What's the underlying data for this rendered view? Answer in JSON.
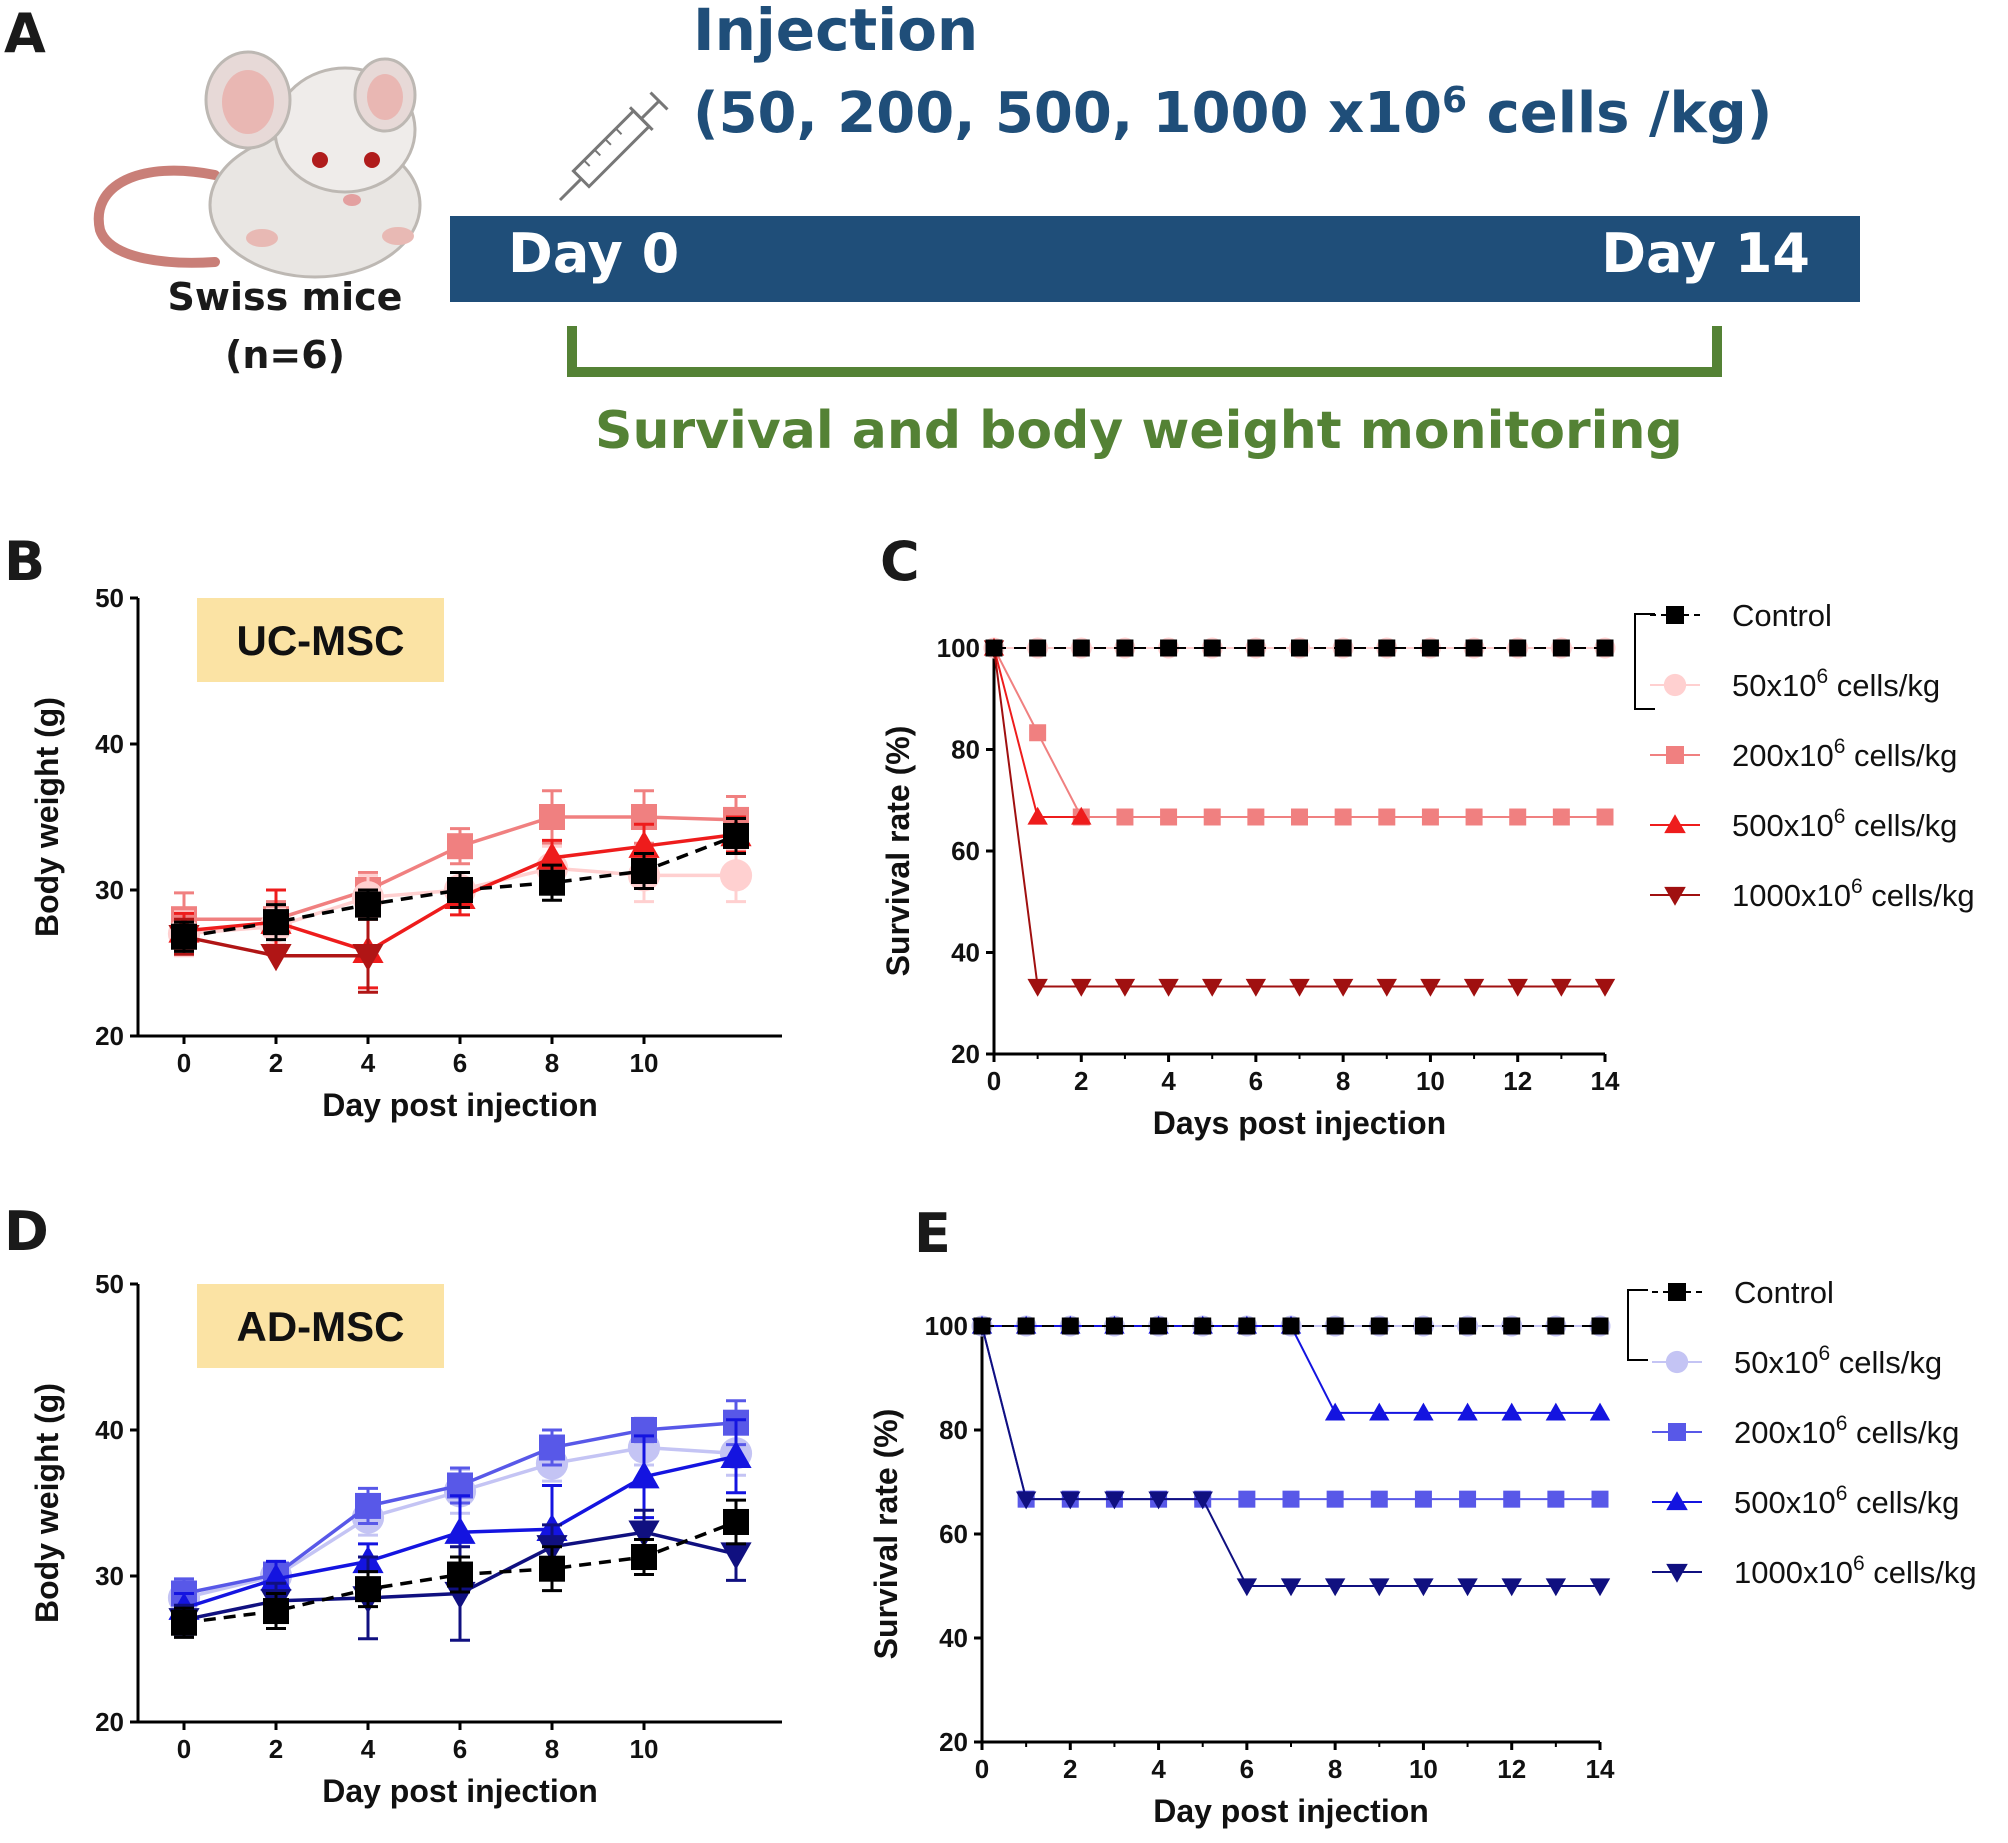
{
  "panel_a": {
    "letter": "A",
    "injection_title": "Injection",
    "doses_prefix": "(50, 200, 500, 1000 x10",
    "doses_exp": "6",
    "doses_suffix": " cells /kg)",
    "day_start": "Day 0",
    "day_end": "Day 14",
    "monitoring": "Survival and body weight monitoring",
    "mouse_label": "Swiss mice",
    "n_label": "(n=6)",
    "colors": {
      "timeline": "#1f4e79",
      "bracket": "#548235"
    }
  },
  "chart_data": [
    {
      "id": "B",
      "letter": "B",
      "type": "line",
      "tag": "UC-MSC",
      "xlabel": "Day post injection",
      "ylabel": "Body weight (g)",
      "xlim": [
        -1,
        13
      ],
      "ylim": [
        20,
        50
      ],
      "xticks": [
        0,
        2,
        4,
        6,
        8,
        10
      ],
      "yticks": [
        20,
        30,
        40,
        50
      ],
      "series": [
        {
          "name": "200x10^6 cells/kg",
          "color": "#f08080",
          "marker": "square",
          "dash": false,
          "x": [
            0,
            2,
            4,
            6,
            8,
            10,
            12
          ],
          "y": [
            28,
            28,
            30,
            33,
            35,
            35,
            34.8
          ],
          "err": [
            1.8,
            1.2,
            1.2,
            1.2,
            1.8,
            1.8,
            1.6
          ]
        },
        {
          "name": "50x10^6 cells/kg",
          "color": "#ffd0d0",
          "marker": "circle",
          "dash": false,
          "x": [
            0,
            2,
            4,
            6,
            8,
            10,
            12
          ],
          "y": [
            27,
            27.5,
            29.5,
            30,
            31.5,
            31,
            31
          ],
          "err": [
            1.5,
            1.2,
            1.5,
            1.2,
            1.5,
            1.8,
            1.8
          ]
        },
        {
          "name": "500x10^6 cells/kg",
          "color": "#ee1c1c",
          "marker": "triangle-up",
          "dash": false,
          "x": [
            0,
            2,
            4,
            6,
            8,
            10,
            12
          ],
          "y": [
            27.2,
            27.8,
            25.8,
            29.5,
            32.2,
            33,
            33.8
          ],
          "err": [
            1.2,
            2.2,
            2.5,
            1.2,
            1.2,
            1.5,
            1.2
          ]
        },
        {
          "name": "1000x10^6 cells/kg",
          "color": "#b01515",
          "marker": "triangle-down",
          "dash": false,
          "x": [
            0,
            2,
            4
          ],
          "y": [
            26.8,
            25.5,
            25.5
          ],
          "err": [
            1.2,
            0,
            2.5
          ]
        },
        {
          "name": "Control",
          "color": "#000000",
          "marker": "square",
          "dash": true,
          "x": [
            0,
            2,
            4,
            6,
            8,
            10,
            12
          ],
          "y": [
            26.8,
            27.8,
            29,
            30,
            30.5,
            31.3,
            33.7
          ],
          "err": [
            1.0,
            1.2,
            1.0,
            1.2,
            1.2,
            1.2,
            1.2
          ]
        }
      ]
    },
    {
      "id": "C",
      "letter": "C",
      "type": "line",
      "xlabel": "Days post injection",
      "ylabel": "Survival rate (%)",
      "xlim": [
        0,
        14
      ],
      "ylim": [
        20,
        100
      ],
      "xticks": [
        0,
        2,
        4,
        6,
        8,
        10,
        12,
        14
      ],
      "yticks": [
        20,
        40,
        60,
        80,
        100
      ],
      "series": [
        {
          "name": "50x10^6 cells/kg",
          "color": "#ffd0d0",
          "marker": "circle",
          "dash": false,
          "x": [
            0,
            1,
            2,
            3,
            4,
            5,
            6,
            7,
            8,
            9,
            10,
            11,
            12,
            13,
            14
          ],
          "y": [
            100,
            100,
            100,
            100,
            100,
            100,
            100,
            100,
            100,
            100,
            100,
            100,
            100,
            100,
            100
          ]
        },
        {
          "name": "200x10^6 cells/kg",
          "color": "#f08080",
          "marker": "square",
          "dash": false,
          "x": [
            0,
            1,
            2,
            3,
            4,
            5,
            6,
            7,
            8,
            9,
            10,
            11,
            12,
            13,
            14
          ],
          "y": [
            100,
            83.3,
            66.7,
            66.7,
            66.7,
            66.7,
            66.7,
            66.7,
            66.7,
            66.7,
            66.7,
            66.7,
            66.7,
            66.7,
            66.7
          ]
        },
        {
          "name": "500x10^6 cells/kg",
          "color": "#ee1c1c",
          "marker": "triangle-up",
          "dash": false,
          "x": [
            0,
            1,
            2
          ],
          "y": [
            100,
            66.7,
            66.7
          ]
        },
        {
          "name": "1000x10^6 cells/kg",
          "color": "#a01010",
          "marker": "triangle-down",
          "dash": false,
          "x": [
            0,
            1,
            2,
            3,
            4,
            5,
            6,
            7,
            8,
            9,
            10,
            11,
            12,
            13,
            14
          ],
          "y": [
            100,
            33.3,
            33.3,
            33.3,
            33.3,
            33.3,
            33.3,
            33.3,
            33.3,
            33.3,
            33.3,
            33.3,
            33.3,
            33.3,
            33.3
          ]
        },
        {
          "name": "Control",
          "color": "#000000",
          "marker": "square",
          "dash": true,
          "x": [
            0,
            1,
            2,
            3,
            4,
            5,
            6,
            7,
            8,
            9,
            10,
            11,
            12,
            13,
            14
          ],
          "y": [
            100,
            100,
            100,
            100,
            100,
            100,
            100,
            100,
            100,
            100,
            100,
            100,
            100,
            100,
            100
          ]
        }
      ],
      "legend": [
        {
          "text": "Control",
          "sup": "",
          "tail": "",
          "color": "#000000",
          "marker": "square",
          "dash": true
        },
        {
          "text": "50x10",
          "sup": "6",
          "tail": " cells/kg",
          "color": "#ffd0d0",
          "marker": "circle",
          "dash": false
        },
        {
          "text": "200x10",
          "sup": "6",
          "tail": " cells/kg",
          "color": "#f08080",
          "marker": "square",
          "dash": false
        },
        {
          "text": "500x10",
          "sup": "6",
          "tail": " cells/kg",
          "color": "#ee1c1c",
          "marker": "triangle-up",
          "dash": false
        },
        {
          "text": "1000x10",
          "sup": "6",
          "tail": " cells/kg",
          "color": "#a01010",
          "marker": "triangle-down",
          "dash": false
        }
      ]
    },
    {
      "id": "D",
      "letter": "D",
      "type": "line",
      "tag": "AD-MSC",
      "xlabel": "Day post injection",
      "ylabel": "Body weight (g)",
      "xlim": [
        -1,
        13
      ],
      "ylim": [
        20,
        50
      ],
      "xticks": [
        0,
        2,
        4,
        6,
        8,
        10
      ],
      "yticks": [
        20,
        30,
        40,
        50
      ],
      "series": [
        {
          "name": "50x10^6 cells/kg",
          "color": "#c4c4f4",
          "marker": "circle",
          "dash": false,
          "x": [
            0,
            2,
            4,
            6,
            8,
            10,
            12
          ],
          "y": [
            28.5,
            30,
            34,
            35.8,
            37.7,
            38.8,
            38.4
          ],
          "err": [
            1.2,
            1.0,
            1.2,
            1.5,
            1.2,
            1.2,
            1.5
          ]
        },
        {
          "name": "200x10^6 cells/kg",
          "color": "#5858e8",
          "marker": "square",
          "dash": false,
          "x": [
            0,
            2,
            4,
            6,
            8,
            10,
            12
          ],
          "y": [
            28.8,
            30.1,
            34.8,
            36.2,
            38.8,
            40,
            40.5
          ],
          "err": [
            1.0,
            0.8,
            1.2,
            1.2,
            1.2,
            0.8,
            1.5
          ]
        },
        {
          "name": "500x10^6 cells/kg",
          "color": "#1414e0",
          "marker": "triangle-up",
          "dash": false,
          "x": [
            0,
            2,
            4,
            6,
            8,
            10,
            12
          ],
          "y": [
            27.8,
            29.8,
            31,
            33,
            33.2,
            36.8,
            38.2
          ],
          "err": [
            1.0,
            1.2,
            1.2,
            2.5,
            3.0,
            2.8,
            2.5
          ]
        },
        {
          "name": "1000x10^6 cells/kg",
          "color": "#101080",
          "marker": "triangle-down",
          "dash": false,
          "x": [
            0,
            2,
            4,
            6,
            8,
            10,
            12
          ],
          "y": [
            27,
            28.3,
            28.5,
            28.8,
            32,
            33,
            31.5
          ],
          "err": [
            1.0,
            1.2,
            2.8,
            3.2,
            1.5,
            1.5,
            1.8
          ]
        },
        {
          "name": "Control",
          "color": "#000000",
          "marker": "square",
          "dash": true,
          "x": [
            0,
            2,
            4,
            6,
            8,
            10,
            12
          ],
          "y": [
            26.8,
            27.6,
            29.1,
            30.1,
            30.5,
            31.3,
            33.7
          ],
          "err": [
            1.0,
            1.2,
            1.2,
            1.2,
            1.5,
            1.2,
            1.5
          ]
        }
      ]
    },
    {
      "id": "E",
      "letter": "E",
      "type": "line",
      "xlabel": "Day post injection",
      "ylabel": "Survival rate (%)",
      "xlim": [
        0,
        14
      ],
      "ylim": [
        20,
        100
      ],
      "xticks": [
        0,
        2,
        4,
        6,
        8,
        10,
        12,
        14
      ],
      "yticks": [
        20,
        40,
        60,
        80,
        100
      ],
      "series": [
        {
          "name": "50x10^6 cells/kg",
          "color": "#c4c4f4",
          "marker": "circle",
          "dash": false,
          "x": [
            0,
            1,
            2,
            3,
            4,
            5,
            6,
            7,
            8,
            9,
            10,
            11,
            12,
            13,
            14
          ],
          "y": [
            100,
            100,
            100,
            100,
            100,
            100,
            100,
            100,
            100,
            100,
            100,
            100,
            100,
            100,
            100
          ]
        },
        {
          "name": "200x10^6 cells/kg",
          "color": "#5858e8",
          "marker": "square",
          "dash": false,
          "x": [
            0,
            1,
            2,
            3,
            4,
            5,
            6,
            7,
            8,
            9,
            10,
            11,
            12,
            13,
            14
          ],
          "y": [
            100,
            66.7,
            66.7,
            66.7,
            66.7,
            66.7,
            66.7,
            66.7,
            66.7,
            66.7,
            66.7,
            66.7,
            66.7,
            66.7,
            66.7
          ]
        },
        {
          "name": "500x10^6 cells/kg",
          "color": "#1414e0",
          "marker": "triangle-up",
          "dash": false,
          "x": [
            0,
            1,
            2,
            3,
            4,
            5,
            6,
            7,
            8,
            9,
            10,
            11,
            12,
            13,
            14
          ],
          "y": [
            100,
            100,
            100,
            100,
            100,
            100,
            100,
            100,
            83.3,
            83.3,
            83.3,
            83.3,
            83.3,
            83.3,
            83.3
          ]
        },
        {
          "name": "1000x10^6 cells/kg",
          "color": "#101080",
          "marker": "triangle-down",
          "dash": false,
          "x": [
            0,
            1,
            2,
            3,
            4,
            5,
            6,
            7,
            8,
            9,
            10,
            11,
            12,
            13,
            14
          ],
          "y": [
            100,
            66.7,
            66.7,
            66.7,
            66.7,
            66.7,
            50,
            50,
            50,
            50,
            50,
            50,
            50,
            50,
            50
          ]
        },
        {
          "name": "Control",
          "color": "#000000",
          "marker": "square",
          "dash": true,
          "x": [
            0,
            1,
            2,
            3,
            4,
            5,
            6,
            7,
            8,
            9,
            10,
            11,
            12,
            13,
            14
          ],
          "y": [
            100,
            100,
            100,
            100,
            100,
            100,
            100,
            100,
            100,
            100,
            100,
            100,
            100,
            100,
            100
          ]
        }
      ],
      "legend": [
        {
          "text": "Control",
          "sup": "",
          "tail": "",
          "color": "#000000",
          "marker": "square",
          "dash": true
        },
        {
          "text": "50x10",
          "sup": "6",
          "tail": " cells/kg",
          "color": "#c4c4f4",
          "marker": "circle",
          "dash": false
        },
        {
          "text": "200x10",
          "sup": "6",
          "tail": " cells/kg",
          "color": "#5858e8",
          "marker": "square",
          "dash": false
        },
        {
          "text": "500x10",
          "sup": "6",
          "tail": " cells/kg",
          "color": "#1414e0",
          "marker": "triangle-up",
          "dash": false
        },
        {
          "text": "1000x10",
          "sup": "6",
          "tail": " cells/kg",
          "color": "#101080",
          "marker": "triangle-down",
          "dash": false
        }
      ]
    }
  ]
}
